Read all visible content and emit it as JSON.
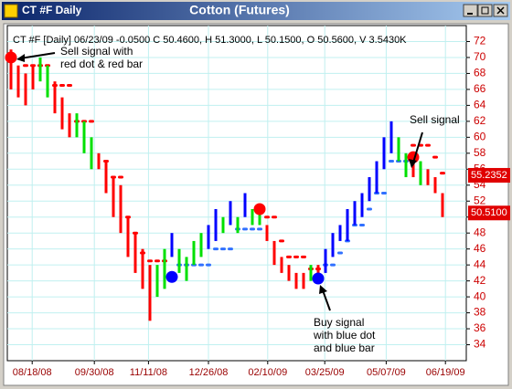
{
  "window_title": "CT #F Daily",
  "chart_data": {
    "type": "price-bars",
    "title": "Cotton (Futures)",
    "info": "CT #F [Daily] 06/23/09 -0.0500 C 50.4600, H 51.3000, L 50.1500, O 50.5600, V 3.5430K",
    "xlim": [
      -0.5,
      62.25
    ],
    "xticks": [
      {
        "value": 2.9,
        "label": "08/18/08"
      },
      {
        "value": 11.4,
        "label": "09/30/08"
      },
      {
        "value": 18.8,
        "label": "11/11/08"
      },
      {
        "value": 27,
        "label": "12/26/08"
      },
      {
        "value": 35.1,
        "label": "02/10/09"
      },
      {
        "value": 42.9,
        "label": "03/25/09"
      },
      {
        "value": 51.3,
        "label": "05/07/09"
      },
      {
        "value": 59.4,
        "label": "06/19/09"
      }
    ],
    "ylim": [
      32,
      74
    ],
    "yticks": [
      34,
      36,
      38,
      40,
      42,
      44,
      46,
      48,
      50,
      52,
      54,
      56,
      58,
      60,
      62,
      64,
      66,
      68,
      70,
      72
    ],
    "grid": true,
    "bars": {
      "highs": [
        71,
        69,
        68,
        69,
        70,
        69,
        67,
        65,
        63,
        63,
        62,
        60,
        58,
        57,
        55,
        54,
        50,
        48,
        46,
        44,
        44,
        46,
        48,
        46,
        45,
        47,
        48,
        49,
        51,
        50,
        52,
        50,
        53,
        51,
        51,
        49,
        47,
        45,
        44,
        43,
        43,
        44,
        44,
        46,
        48,
        49,
        51,
        52,
        53,
        55,
        57,
        60,
        62,
        60,
        58,
        58,
        57,
        56,
        55,
        53
      ],
      "lows": [
        66,
        65,
        64,
        66,
        67,
        65,
        63,
        61,
        60,
        60,
        58,
        56,
        56,
        53,
        50,
        48,
        45,
        43,
        41,
        37,
        40,
        41,
        45,
        43,
        42,
        44,
        45,
        46,
        47,
        48,
        49,
        48,
        50,
        49,
        49,
        47,
        44,
        43,
        42,
        41,
        41,
        42,
        42,
        43,
        45,
        47,
        47,
        49,
        50,
        52,
        53,
        56,
        58,
        57,
        55,
        55,
        54,
        54,
        53,
        50
      ],
      "colors": [
        "#ff0000",
        "#ff0000",
        "#ff0000",
        "#ff0000",
        "#00e000",
        "#00e000",
        "#ff0000",
        "#ff0000",
        "#ff0000",
        "#00e000",
        "#00e000",
        "#00e000",
        "#ff0000",
        "#ff0000",
        "#ff0000",
        "#ff0000",
        "#ff0000",
        "#ff0000",
        "#ff0000",
        "#ff0000",
        "#00e000",
        "#00e000",
        "#0000ff",
        "#00e000",
        "#00e000",
        "#00e000",
        "#00e000",
        "#0000ff",
        "#0000ff",
        "#00e000",
        "#0000ff",
        "#00e000",
        "#0000ff",
        "#00e000",
        "#00e000",
        "#ff0000",
        "#ff0000",
        "#ff0000",
        "#ff0000",
        "#ff0000",
        "#ff0000",
        "#00e000",
        "#ff0000",
        "#0000ff",
        "#0000ff",
        "#0000ff",
        "#0000ff",
        "#0000ff",
        "#0000ff",
        "#0000ff",
        "#0000ff",
        "#0000ff",
        "#0000ff",
        "#00e000",
        "#00e000",
        "#ff0000",
        "#00e000",
        "#ff0000",
        "#ff0000",
        "#ff0000"
      ]
    },
    "stops": [
      {
        "color": "#ff0000",
        "values": [
          null,
          null,
          69,
          69,
          69,
          69,
          66.5,
          66.5,
          66.5,
          62,
          62,
          62,
          null,
          57,
          55,
          55,
          50,
          48,
          45.5,
          44.5,
          44.5,
          44.5,
          null,
          null,
          null,
          null,
          null,
          null,
          null,
          null,
          null,
          null,
          null,
          null,
          null,
          50,
          50,
          47,
          45,
          45,
          45,
          43.5,
          43.5,
          null,
          null,
          null,
          null,
          null,
          null,
          null,
          null,
          null,
          null,
          null,
          null,
          59,
          59,
          59,
          57.5,
          55.5
        ]
      },
      {
        "color": "#3070ff",
        "values": [
          null,
          null,
          null,
          null,
          null,
          null,
          null,
          null,
          null,
          null,
          null,
          null,
          null,
          null,
          null,
          null,
          null,
          null,
          null,
          null,
          null,
          null,
          null,
          44,
          44,
          44,
          44,
          44,
          46,
          46,
          46,
          48.5,
          48.5,
          48.5,
          48.5,
          null,
          null,
          null,
          null,
          null,
          null,
          null,
          null,
          44,
          44,
          45.5,
          47,
          49,
          49,
          51,
          53,
          53,
          57,
          57,
          57,
          null,
          null,
          null,
          null,
          null
        ]
      }
    ],
    "signals": {
      "x": [
        0,
        22,
        34,
        42,
        55
      ],
      "values": [
        70,
        42.5,
        51,
        42.3,
        57.5
      ],
      "colors": [
        "#ff0000",
        "#0000ff",
        "#ff0000",
        "#0000ff",
        "#ff0000"
      ]
    },
    "price_labels": [
      55.2352,
      {
        "value": 50.51,
        "label": "50.5100"
      }
    ],
    "annotations": [
      {
        "lines": [
          "Sell signal with",
          "red dot & red bar"
        ]
      },
      {
        "lines": [
          "Sell signal"
        ]
      },
      {
        "lines": [
          "Buy signal",
          "with blue dot",
          "and blue bar"
        ]
      }
    ]
  }
}
